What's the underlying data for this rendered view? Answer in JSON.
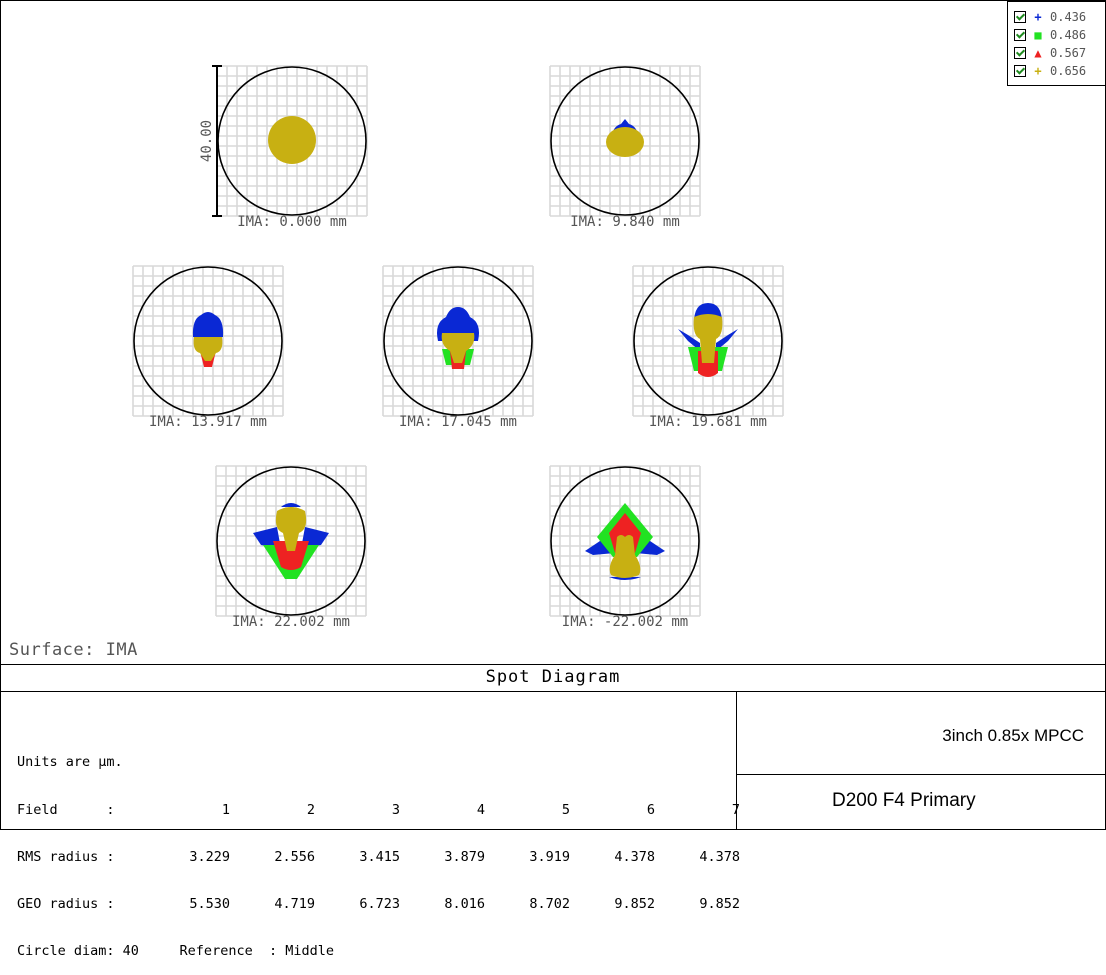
{
  "surface_label": "Surface: IMA",
  "scale_label": "40.00",
  "legend": [
    {
      "wavelength": "0.436",
      "symbol": "+",
      "color": "#0a28d4",
      "marker": "plus"
    },
    {
      "wavelength": "0.486",
      "symbol": "■",
      "color": "#22e222",
      "marker": "square"
    },
    {
      "wavelength": "0.567",
      "symbol": "▲",
      "color": "#ee2222",
      "marker": "triangle"
    },
    {
      "wavelength": "0.656",
      "symbol": "+",
      "color": "#c8b012",
      "marker": "plus"
    }
  ],
  "colors": {
    "blue": "#0a28d4",
    "green": "#22e222",
    "red": "#ee2222",
    "yellow": "#c8b012",
    "grid": "#d8d8d8"
  },
  "spots": [
    {
      "label": "IMA: 0.000 mm"
    },
    {
      "label": "IMA: 9.840 mm"
    },
    {
      "label": "IMA: 13.917 mm"
    },
    {
      "label": "IMA: 17.045 mm"
    },
    {
      "label": "IMA: 19.681 mm"
    },
    {
      "label": "IMA: 22.002 mm"
    },
    {
      "label": "IMA: -22.002 mm"
    }
  ],
  "title": "Spot Diagram",
  "info": {
    "units": "Units are µm.",
    "field_label": "Field      :",
    "fields": [
      "1",
      "2",
      "3",
      "4",
      "5",
      "6",
      "7"
    ],
    "rms_label": "RMS radius :",
    "rms": [
      "3.229",
      "2.556",
      "3.415",
      "3.879",
      "3.919",
      "4.378",
      "4.378"
    ],
    "geo_label": "GEO radius :",
    "geo": [
      "5.530",
      "4.719",
      "6.723",
      "8.016",
      "8.702",
      "9.852",
      "9.852"
    ],
    "footer": "Circle diam: 40     Reference  : Middle"
  },
  "lens_name": "3inch 0.85x MPCC",
  "design_name": "D200  F4  Primary"
}
